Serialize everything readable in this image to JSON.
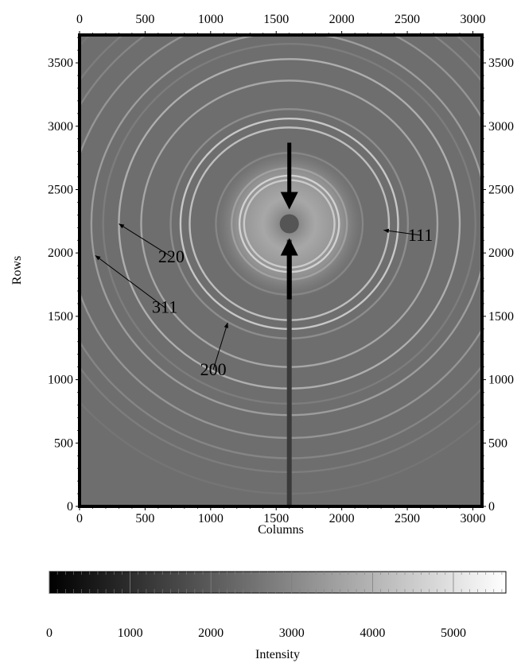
{
  "figure": {
    "xlabel": "Columns",
    "ylabel": "Rows",
    "colorbar_label": "Intensity"
  },
  "chart_data": [
    {
      "type": "heatmap",
      "xlabel": "Columns",
      "ylabel": "Rows",
      "xlim": [
        0,
        3070
      ],
      "ylim": [
        0,
        3720
      ],
      "x_ticks": [
        0,
        500,
        1000,
        1500,
        2000,
        2500,
        3000
      ],
      "y_ticks": [
        0,
        500,
        1000,
        1500,
        2000,
        2500,
        3000,
        3500
      ],
      "grid": false,
      "ring_center": {
        "x": 1600,
        "y": 2230
      },
      "rings": [
        {
          "radius": 345,
          "intensity": 4800
        },
        {
          "radius": 380,
          "intensity": 5200
        },
        {
          "radius": 440,
          "intensity": 3400
        },
        {
          "radius": 560,
          "intensity": 3000
        },
        {
          "radius": 760,
          "intensity": 4400
        },
        {
          "radius": 830,
          "intensity": 4600
        },
        {
          "radius": 905,
          "intensity": 3200
        },
        {
          "radius": 1130,
          "intensity": 3800
        },
        {
          "radius": 1300,
          "intensity": 4000
        },
        {
          "radius": 1420,
          "intensity": 2800
        },
        {
          "radius": 1510,
          "intensity": 3600
        },
        {
          "radius": 1690,
          "intensity": 3400
        },
        {
          "radius": 1850,
          "intensity": 3000
        },
        {
          "radius": 1960,
          "intensity": 2800
        },
        {
          "radius": 2130,
          "intensity": 2600
        }
      ],
      "annotations": [
        {
          "text": "111",
          "x": 2600,
          "y": 2140,
          "arrow_to": {
            "x": 2320,
            "y": 2180
          }
        },
        {
          "text": "220",
          "x": 700,
          "y": 1970,
          "arrow_to": {
            "x": 300,
            "y": 2230
          }
        },
        {
          "text": "311",
          "x": 650,
          "y": 1570,
          "arrow_to": {
            "x": 120,
            "y": 1980
          }
        },
        {
          "text": "200",
          "x": 1020,
          "y": 1080,
          "arrow_to": {
            "x": 1130,
            "y": 1450
          }
        }
      ]
    },
    {
      "type": "heatmap",
      "xlabel": "Intensity",
      "xlim": [
        0,
        5650
      ],
      "x_ticks": [
        0,
        1000,
        2000,
        3000,
        4000,
        5000
      ],
      "colormap": "gray"
    }
  ]
}
